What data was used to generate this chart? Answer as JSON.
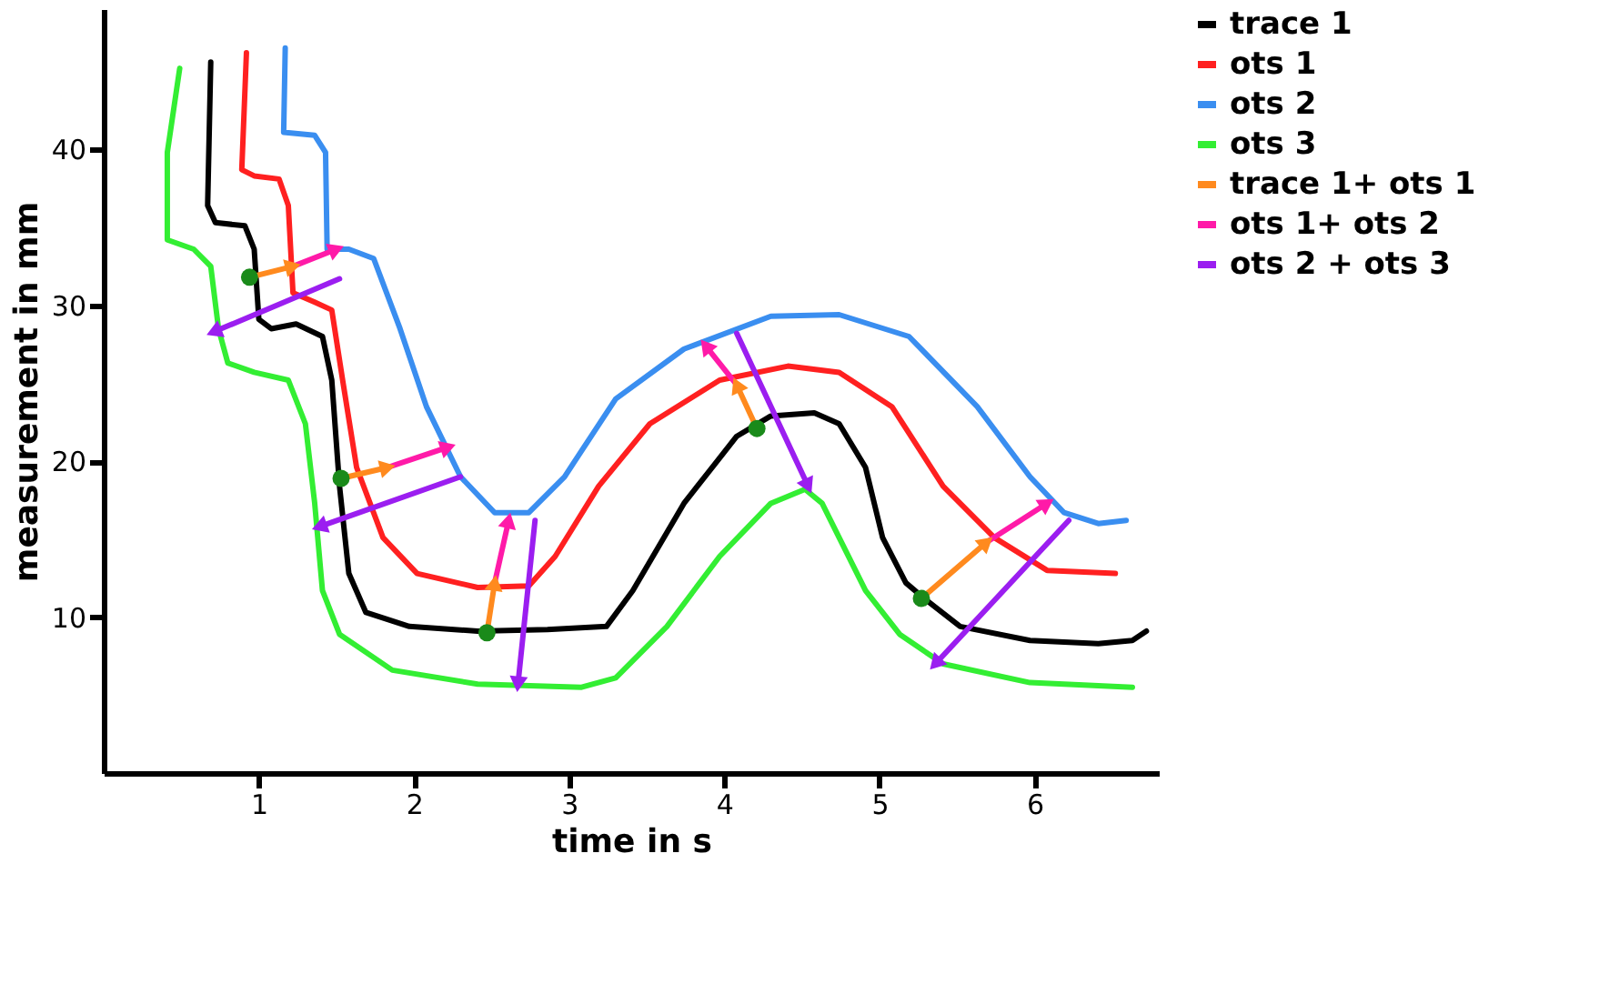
{
  "chart_data": {
    "type": "line",
    "xlabel": "time in s",
    "ylabel": "measurement in mm",
    "xlim": [
      0,
      6.8
    ],
    "ylim": [
      0,
      49
    ],
    "xticks": [
      1,
      2,
      3,
      4,
      5,
      6
    ],
    "yticks": [
      10,
      20,
      30,
      40
    ],
    "grid": false,
    "legend": "top right",
    "line_style": "solid",
    "series": [
      {
        "name": "trace 1",
        "color": "#000000",
        "x": [
          0.69,
          0.67,
          0.72,
          0.91,
          0.97,
          1.0,
          1.08,
          1.24,
          1.41,
          1.47,
          1.52,
          1.58,
          1.69,
          1.97,
          2.41,
          2.86,
          3.24,
          3.41,
          3.74,
          4.08,
          4.3,
          4.58,
          4.74,
          4.91,
          5.02,
          5.17,
          5.3,
          5.52,
          5.97,
          6.41,
          6.63,
          6.72
        ],
        "values": [
          45.6,
          36.4,
          35.3,
          35.1,
          33.6,
          29.1,
          28.5,
          28.8,
          28.0,
          25.2,
          18.4,
          12.8,
          10.3,
          9.4,
          9.1,
          9.2,
          9.4,
          11.7,
          17.3,
          21.6,
          22.9,
          23.1,
          22.4,
          19.6,
          15.1,
          12.2,
          11.1,
          9.4,
          8.5,
          8.3,
          8.5,
          9.1
        ]
      },
      {
        "name": "ots 1",
        "color": "#ff2020",
        "x": [
          0.92,
          0.89,
          0.97,
          1.13,
          1.19,
          1.22,
          1.36,
          1.47,
          1.54,
          1.63,
          1.8,
          2.02,
          2.41,
          2.74,
          2.91,
          3.19,
          3.52,
          3.97,
          4.41,
          4.74,
          5.08,
          5.41,
          5.74,
          6.08,
          6.52
        ],
        "values": [
          46.2,
          38.7,
          38.3,
          38.1,
          36.4,
          30.8,
          30.2,
          29.7,
          25.2,
          19.6,
          15.1,
          12.8,
          11.9,
          12.0,
          13.9,
          18.4,
          22.4,
          25.2,
          26.1,
          25.7,
          23.5,
          18.4,
          15.1,
          13.0,
          12.8
        ]
      },
      {
        "name": "ots 2",
        "color": "#3a8ef0",
        "x": [
          1.17,
          1.16,
          1.36,
          1.43,
          1.44,
          1.58,
          1.74,
          1.91,
          2.08,
          2.3,
          2.52,
          2.74,
          2.97,
          3.3,
          3.74,
          4.3,
          4.74,
          5.19,
          5.63,
          5.97,
          6.19,
          6.41,
          6.59
        ],
        "values": [
          46.5,
          41.1,
          40.9,
          39.8,
          33.6,
          33.6,
          33.0,
          28.5,
          23.5,
          19.0,
          16.7,
          16.7,
          19.0,
          24.0,
          27.2,
          29.3,
          29.4,
          28.0,
          23.5,
          19.0,
          16.7,
          16.0,
          16.2
        ]
      },
      {
        "name": "ots 3",
        "color": "#33ee33",
        "x": [
          0.49,
          0.41,
          0.41,
          0.58,
          0.69,
          0.74,
          0.8,
          0.97,
          1.19,
          1.3,
          1.36,
          1.41,
          1.52,
          1.86,
          2.41,
          3.08,
          3.3,
          3.63,
          3.97,
          4.3,
          4.52,
          4.63,
          4.74,
          4.91,
          5.13,
          5.41,
          5.97,
          6.63
        ],
        "values": [
          45.2,
          39.8,
          34.2,
          33.6,
          32.5,
          28.5,
          26.3,
          25.7,
          25.2,
          22.4,
          17.3,
          11.7,
          8.9,
          6.6,
          5.7,
          5.5,
          6.1,
          9.4,
          13.9,
          17.3,
          18.2,
          17.3,
          15.1,
          11.7,
          8.9,
          7.0,
          5.8,
          5.5
        ]
      },
      {
        "name": "trace 1+ ots 1",
        "color": "#ff8a1e",
        "marker": "triangle",
        "x": [
          0.94,
          1.22,
          null,
          1.53,
          1.83,
          null,
          2.47,
          2.52,
          null,
          4.21,
          4.08,
          null,
          5.27,
          5.69
        ],
        "values": [
          31.8,
          32.5,
          null,
          18.9,
          19.6,
          null,
          9.0,
          12.2,
          null,
          22.1,
          24.9,
          null,
          11.2,
          14.8
        ]
      },
      {
        "name": "ots 1+ ots 2",
        "color": "#ff1aa8",
        "marker": "triangle",
        "x": [
          1.22,
          1.5,
          null,
          1.83,
          2.22,
          null,
          2.52,
          2.61,
          null,
          4.08,
          3.88,
          null,
          5.69,
          6.08
        ],
        "values": [
          32.5,
          33.6,
          null,
          19.6,
          20.9,
          null,
          12.2,
          16.2,
          null,
          24.9,
          27.4,
          null,
          14.8,
          17.3
        ]
      },
      {
        "name": "ots 2 + ots 3",
        "color": "#9b1ef0",
        "marker": "triangle",
        "x": [
          1.52,
          0.71,
          null,
          2.3,
          1.39,
          null,
          2.78,
          2.67,
          null,
          4.08,
          4.54,
          null,
          6.22,
          5.36
        ],
        "values": [
          31.7,
          28.3,
          null,
          19.0,
          15.8,
          null,
          16.2,
          5.7,
          null,
          28.2,
          18.4,
          null,
          16.2,
          7.0
        ]
      },
      {
        "type": "scatter",
        "color": "#1a8a1a",
        "marker": "circle",
        "x": [
          0.94,
          1.53,
          2.47,
          4.21,
          5.27
        ],
        "values": [
          31.8,
          18.9,
          9.0,
          22.1,
          11.2
        ]
      }
    ]
  }
}
